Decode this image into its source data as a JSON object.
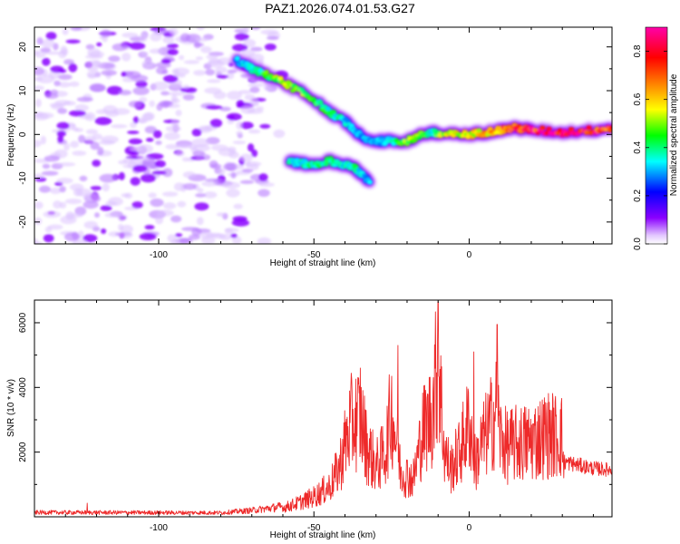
{
  "title": "PAZ1.2026.074.01.53.G27",
  "chart_data": [
    {
      "type": "heatmap",
      "title": "PAZ1.2026.074.01.53.G27",
      "xlabel": "Height of straight line (km)",
      "ylabel": "Frequency (Hz)",
      "xlim": [
        -140,
        46
      ],
      "ylim": [
        -25,
        24.5
      ],
      "xticks": [
        -100,
        -50,
        0
      ],
      "yticks": [
        -20,
        -10,
        0,
        10,
        20
      ],
      "colorbar": {
        "label": "Normalized spectral amplitude",
        "range": [
          0,
          0.9
        ],
        "ticks": [
          0.0,
          0.2,
          0.4,
          0.6,
          0.8
        ],
        "colors": [
          "#ffffff",
          "#e2c6ff",
          "#8a00ff",
          "#0000ff",
          "#00ffff",
          "#00ff00",
          "#ffff00",
          "#ff8000",
          "#ff0000",
          "#ff00aa"
        ]
      },
      "ridge_main": {
        "x": [
          -75,
          -70,
          -65,
          -60,
          -55,
          -50,
          -45,
          -40,
          -37,
          -34,
          -30,
          -25,
          -20,
          -15,
          -12,
          -10,
          -5,
          0,
          5,
          10,
          15,
          20,
          30,
          40,
          46
        ],
        "y": [
          17,
          15,
          13.5,
          12,
          10,
          8,
          5,
          3,
          1,
          -1,
          -1.5,
          -1.5,
          -1.5,
          0,
          0.5,
          0,
          0,
          0,
          0.5,
          1,
          1.5,
          1,
          0.5,
          1,
          1.5
        ],
        "amplitude": [
          0.3,
          0.35,
          0.45,
          0.5,
          0.5,
          0.45,
          0.4,
          0.35,
          0.3,
          0.3,
          0.3,
          0.4,
          0.5,
          0.45,
          0.35,
          0.5,
          0.55,
          0.55,
          0.6,
          0.7,
          0.75,
          0.8,
          0.85,
          0.8,
          0.75
        ]
      },
      "ridge_branch": {
        "x": [
          -58,
          -55,
          -50,
          -45,
          -40,
          -37,
          -35,
          -32
        ],
        "y": [
          -6,
          -6.5,
          -7,
          -6,
          -7,
          -7.5,
          -9,
          -11
        ],
        "amplitude": [
          0.35,
          0.35,
          0.4,
          0.4,
          0.35,
          0.4,
          0.35,
          0.3
        ]
      }
    },
    {
      "type": "line",
      "xlabel": "Height of straight line (km)",
      "ylabel": "SNR (10 * v/v)",
      "xlim": [
        -140,
        46
      ],
      "ylim": [
        0,
        6700
      ],
      "xticks": [
        -100,
        -50,
        0
      ],
      "yticks": [
        2000,
        4000,
        6000
      ],
      "color": "#ee2a2a",
      "envelope": {
        "x": [
          -140,
          -80,
          -70,
          -60,
          -55,
          -50,
          -45,
          -42,
          -40,
          -38,
          -35,
          -33,
          -30,
          -27,
          -25,
          -22,
          -18,
          -15,
          -12,
          -10,
          -8,
          -6,
          -3,
          0,
          2,
          4,
          6,
          9,
          10,
          12,
          15,
          20,
          25,
          30,
          30.5,
          35,
          40,
          46
        ],
        "y": [
          150,
          140,
          220,
          350,
          550,
          800,
          1200,
          1900,
          2900,
          3700,
          4000,
          2800,
          2000,
          2600,
          4300,
          1800,
          1500,
          3400,
          4100,
          6400,
          2600,
          1900,
          2600,
          3800,
          2100,
          2900,
          3400,
          4300,
          3200,
          2800,
          2900,
          3000,
          3300,
          3200,
          1700,
          1600,
          1500,
          1450
        ]
      },
      "spikes": [
        {
          "x": -123,
          "y": 420
        },
        {
          "x": -35,
          "y": 4600
        },
        {
          "x": -23,
          "y": 5300
        },
        {
          "x": -10,
          "y": 6650
        },
        {
          "x": 1.5,
          "y": 5100
        },
        {
          "x": 9,
          "y": 5950
        }
      ]
    }
  ]
}
